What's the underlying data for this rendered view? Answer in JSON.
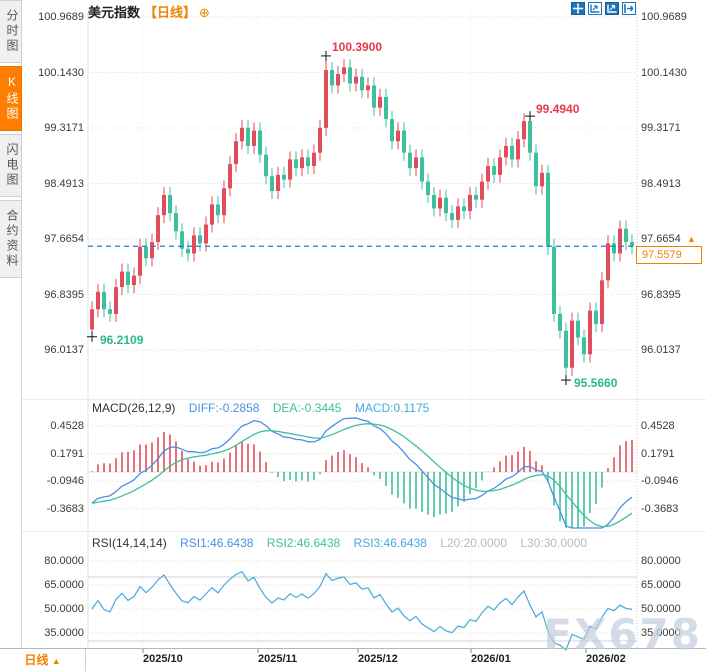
{
  "colors": {
    "up": "#E14D5B",
    "down": "#3FBF9D",
    "diff_line": "#4A90E2",
    "dea_line": "#3FBF9D",
    "rsi_line": "#49A9DB",
    "dashed_price_line": "#1C7FE0",
    "accent_orange": "#F08200",
    "annotation_up": "#E8374A",
    "annotation_down": "#2EB78D",
    "toolbar_blue": "#1B75BB",
    "axis_text": "#3A3A3A",
    "watermark": "#C2CEDE"
  },
  "sidebar": {
    "tabs": [
      {
        "label": "分时图",
        "active": false
      },
      {
        "label": "K线图",
        "active": true
      },
      {
        "label": "闪电图",
        "active": false
      },
      {
        "label": "合约资料",
        "active": false
      }
    ]
  },
  "header": {
    "symbol": "美元指数",
    "period_tag": "【日线】",
    "add_button": "⊕",
    "toolbar_icons": [
      "move-crosshair",
      "zoom-x-axis",
      "zoom-y-axis",
      "pan-right"
    ]
  },
  "main_chart": {
    "y_axis_labels": [
      "100.9689",
      "100.1430",
      "99.3171",
      "98.4913",
      "97.6654",
      "96.8395",
      "96.0137"
    ],
    "annotations": {
      "high": "100.3900",
      "second_high": "99.4940",
      "low_left": "96.2109",
      "low_right": "95.5660"
    },
    "current_price": {
      "value": "97.5579",
      "direction": "up",
      "arrow": "▲"
    }
  },
  "macd_panel": {
    "title": "MACD(26,12,9)",
    "diff_label": "DIFF:-0.2858",
    "dea_label": "DEA:-0.3445",
    "macd_label": "MACD:0.1175",
    "y_axis_labels": [
      "0.4528",
      "0.1791",
      "-0.0946",
      "-0.3683"
    ]
  },
  "rsi_panel": {
    "title": "RSI(14,14,14)",
    "rsi1_label": "RSI1:46.6438",
    "rsi2_label": "RSI2:46.6438",
    "rsi3_label": "RSI3:46.6438",
    "l20_label": "L20:20.0000",
    "l30_label": "L30:30.0000",
    "y_axis_labels": [
      "80.0000",
      "65.0000",
      "50.0000",
      "35.0000"
    ]
  },
  "x_axis": {
    "labels": [
      "2025/10",
      "2025/11",
      "2025/12",
      "2026/01",
      "2026/02"
    ]
  },
  "bottom_bar": {
    "period_label": "日线",
    "period_arrow": "▲"
  },
  "watermark": "FX678",
  "chart_data": {
    "type": "candlestick+macd+rsi",
    "symbol": "美元指数 (US Dollar Index)",
    "interval": "daily",
    "price_axis_ticks": [
      100.9689,
      100.143,
      99.3171,
      98.4913,
      97.6654,
      96.8395,
      96.0137
    ],
    "x_ticks": [
      "2025/10",
      "2025/11",
      "2025/12",
      "2026/01",
      "2026/02"
    ],
    "first_open": 96.32,
    "wick": 0.12,
    "closes": [
      96.62,
      96.88,
      96.62,
      96.55,
      96.95,
      97.18,
      96.98,
      97.12,
      97.55,
      97.38,
      97.62,
      98.02,
      98.32,
      98.05,
      97.78,
      97.52,
      97.45,
      97.72,
      97.6,
      97.88,
      98.18,
      98.02,
      98.42,
      98.78,
      99.12,
      99.32,
      99.05,
      99.28,
      98.92,
      98.6,
      98.38,
      98.62,
      98.55,
      98.85,
      98.72,
      98.88,
      98.75,
      98.95,
      99.32,
      100.18,
      99.95,
      100.12,
      100.22,
      99.98,
      100.08,
      99.88,
      99.95,
      99.62,
      99.78,
      99.45,
      99.12,
      99.28,
      98.95,
      98.72,
      98.88,
      98.52,
      98.32,
      98.12,
      98.28,
      98.05,
      97.95,
      98.15,
      98.08,
      98.32,
      98.25,
      98.52,
      98.75,
      98.62,
      98.88,
      99.05,
      98.85,
      99.15,
      99.42,
      98.95,
      98.45,
      98.65,
      97.55,
      96.55,
      96.3,
      95.75,
      96.45,
      96.2,
      95.95,
      96.6,
      96.4,
      97.05,
      97.6,
      97.45,
      97.82,
      97.62,
      97.5579
    ],
    "overrides": {
      "high": {
        "39": 100.39,
        "73": 99.494
      },
      "low": {
        "0": 96.2109,
        "79": 95.566
      }
    },
    "marked_points": {
      "highest": 100.39,
      "swing_high": 99.494,
      "swing_low": 96.2109,
      "lowest": 95.566
    },
    "last_close": 97.5579,
    "macd": {
      "fast": 12,
      "slow": 26,
      "signal": 9,
      "last": {
        "diff": -0.2858,
        "dea": -0.3445,
        "macd": 0.1175
      },
      "y_ticks": [
        0.4528,
        0.1791,
        -0.0946,
        -0.3683
      ]
    },
    "rsi": {
      "periods": [
        14,
        14,
        14
      ],
      "last": {
        "rsi1": 46.6438,
        "rsi2": 46.6438,
        "rsi3": 46.6438
      },
      "levels": {
        "L20": 20.0,
        "L30": 30.0
      },
      "y_ticks": [
        80,
        65,
        50,
        35
      ]
    }
  }
}
